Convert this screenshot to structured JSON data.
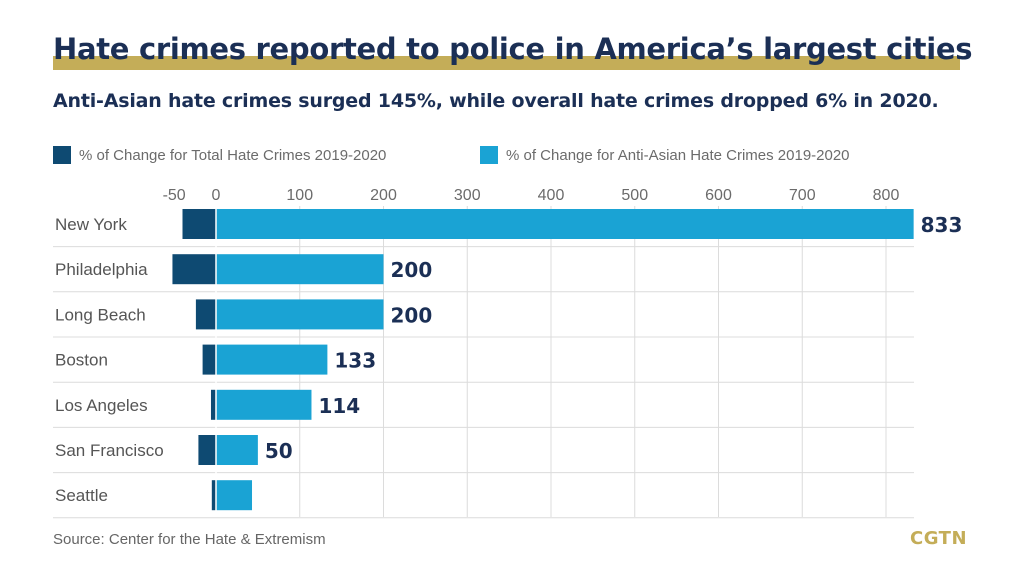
{
  "chart_data": {
    "type": "bar",
    "orientation": "horizontal",
    "title": "Hate crimes reported to police in America’s largest cities",
    "subtitle": "Anti-Asian hate crimes surged 145%, while overall hate crimes dropped 6% in 2020.",
    "categories": [
      "New York",
      "Philadelphia",
      "Long Beach",
      "Boston",
      "Los Angeles",
      "San Francisco",
      "Seattle"
    ],
    "series": [
      {
        "name": "% of Change for Total Hate Crimes 2019-2020",
        "color": "#0e4a72",
        "values": [
          -40,
          -52,
          -24,
          -16,
          -6,
          -21,
          -5
        ]
      },
      {
        "name": "% of Change for Anti-Asian Hate Crimes 2019-2020",
        "color": "#1aa3d4",
        "values": [
          833,
          200,
          200,
          133,
          114,
          50,
          43
        ]
      }
    ],
    "data_labels": [
      "833",
      "200",
      "200",
      "133",
      "114",
      "50",
      ""
    ],
    "x_ticks": [
      "-50",
      "0",
      "100",
      "200",
      "300",
      "400",
      "500",
      "600",
      "700",
      "800"
    ],
    "xlim": [
      -50,
      833
    ],
    "grid": true,
    "legend_position": "top",
    "source": "Source: Center for the Hate & Extremism",
    "brand": "CGTN"
  }
}
